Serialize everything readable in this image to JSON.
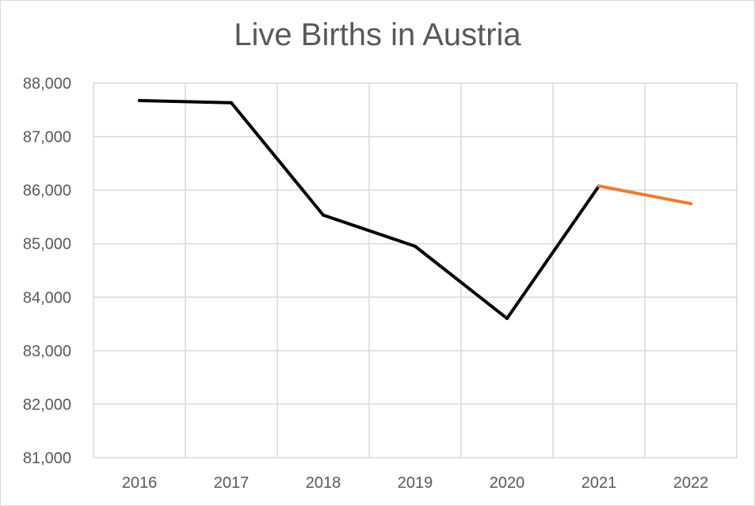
{
  "chart_data": {
    "type": "line",
    "title": "Live Births in Austria",
    "xlabel": "",
    "ylabel": "",
    "categories": [
      "2016",
      "2017",
      "2018",
      "2019",
      "2020",
      "2021",
      "2022"
    ],
    "series": [
      {
        "color": "#000000",
        "values": [
          87675,
          87633,
          85535,
          84952,
          83603,
          86078,
          null
        ]
      },
      {
        "color": "#ed7d31",
        "values": [
          null,
          null,
          null,
          null,
          null,
          86078,
          85747
        ]
      }
    ],
    "ylim": [
      81000,
      88000
    ],
    "yticks": [
      "81,000",
      "82,000",
      "83,000",
      "84,000",
      "85,000",
      "86,000",
      "87,000",
      "88,000"
    ],
    "grid": true,
    "legend": "none"
  }
}
